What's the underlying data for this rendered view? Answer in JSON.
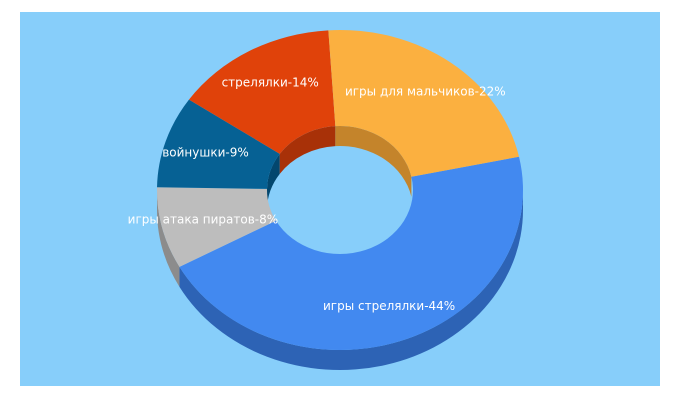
{
  "chart_data": {
    "type": "pie",
    "style": "3d-donut",
    "background": "#87cefa",
    "slices": [
      {
        "label": "игры стрелялки-44%",
        "value": 44,
        "color": "#4289f0",
        "side_color": "#2d63b5"
      },
      {
        "label": "игры атака пиратов-8%",
        "value": 8,
        "color": "#bdbdbd",
        "side_color": "#8c8c8c"
      },
      {
        "label": "войнушки-9%",
        "value": 9,
        "color": "#066194",
        "side_color": "#03476e"
      },
      {
        "label": "стрелялки-14%",
        "value": 14,
        "color": "#e0420a",
        "side_color": "#a83108"
      },
      {
        "label": "игры для мальчиков-22%",
        "value": 22,
        "color": "#fbb040",
        "side_color": "#c4842b"
      }
    ]
  }
}
